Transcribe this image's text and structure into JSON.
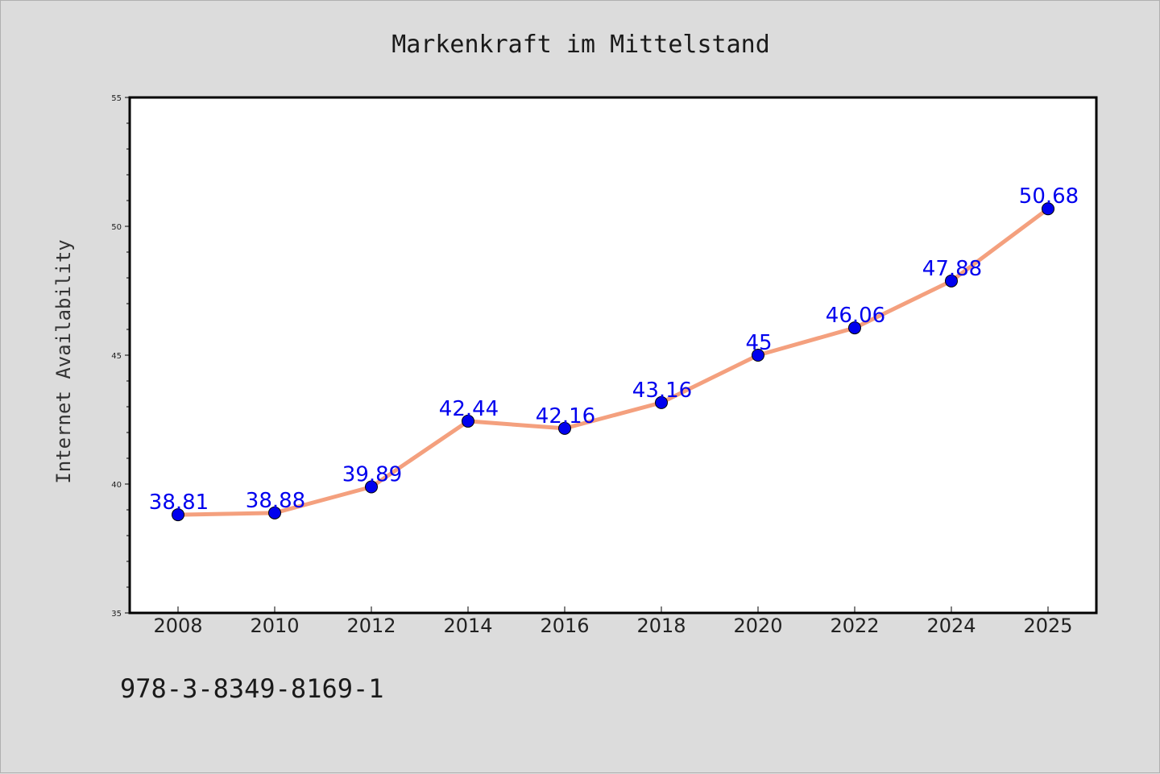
{
  "chart_data": {
    "type": "line",
    "title": "Markenkraft im Mittelstand",
    "xlabel": "",
    "ylabel": "Internet Availability",
    "categories": [
      "2008",
      "2010",
      "2012",
      "2014",
      "2016",
      "2018",
      "2020",
      "2022",
      "2024",
      "2025"
    ],
    "series": [
      {
        "values": [
          38.81,
          38.88,
          39.89,
          42.44,
          42.16,
          43.16,
          45,
          46.06,
          47.88,
          50.68
        ],
        "labels": [
          "38.81",
          "38.88",
          "39.89",
          "42.44",
          "42.16",
          "43.16",
          "45",
          "46.06",
          "47.88",
          "50.68"
        ]
      }
    ],
    "ylim": [
      35,
      55
    ],
    "yticks": [
      "35",
      "40",
      "45",
      "50",
      "55"
    ],
    "grid": false,
    "colors": {
      "line": "#f4a07e",
      "marker": "#0000ee",
      "label": "#0000ee",
      "plot_bg": "#ffffff",
      "page_bg": "#dcdcdc"
    }
  },
  "footer": {
    "isbn": "978-3-8349-8169-1"
  }
}
